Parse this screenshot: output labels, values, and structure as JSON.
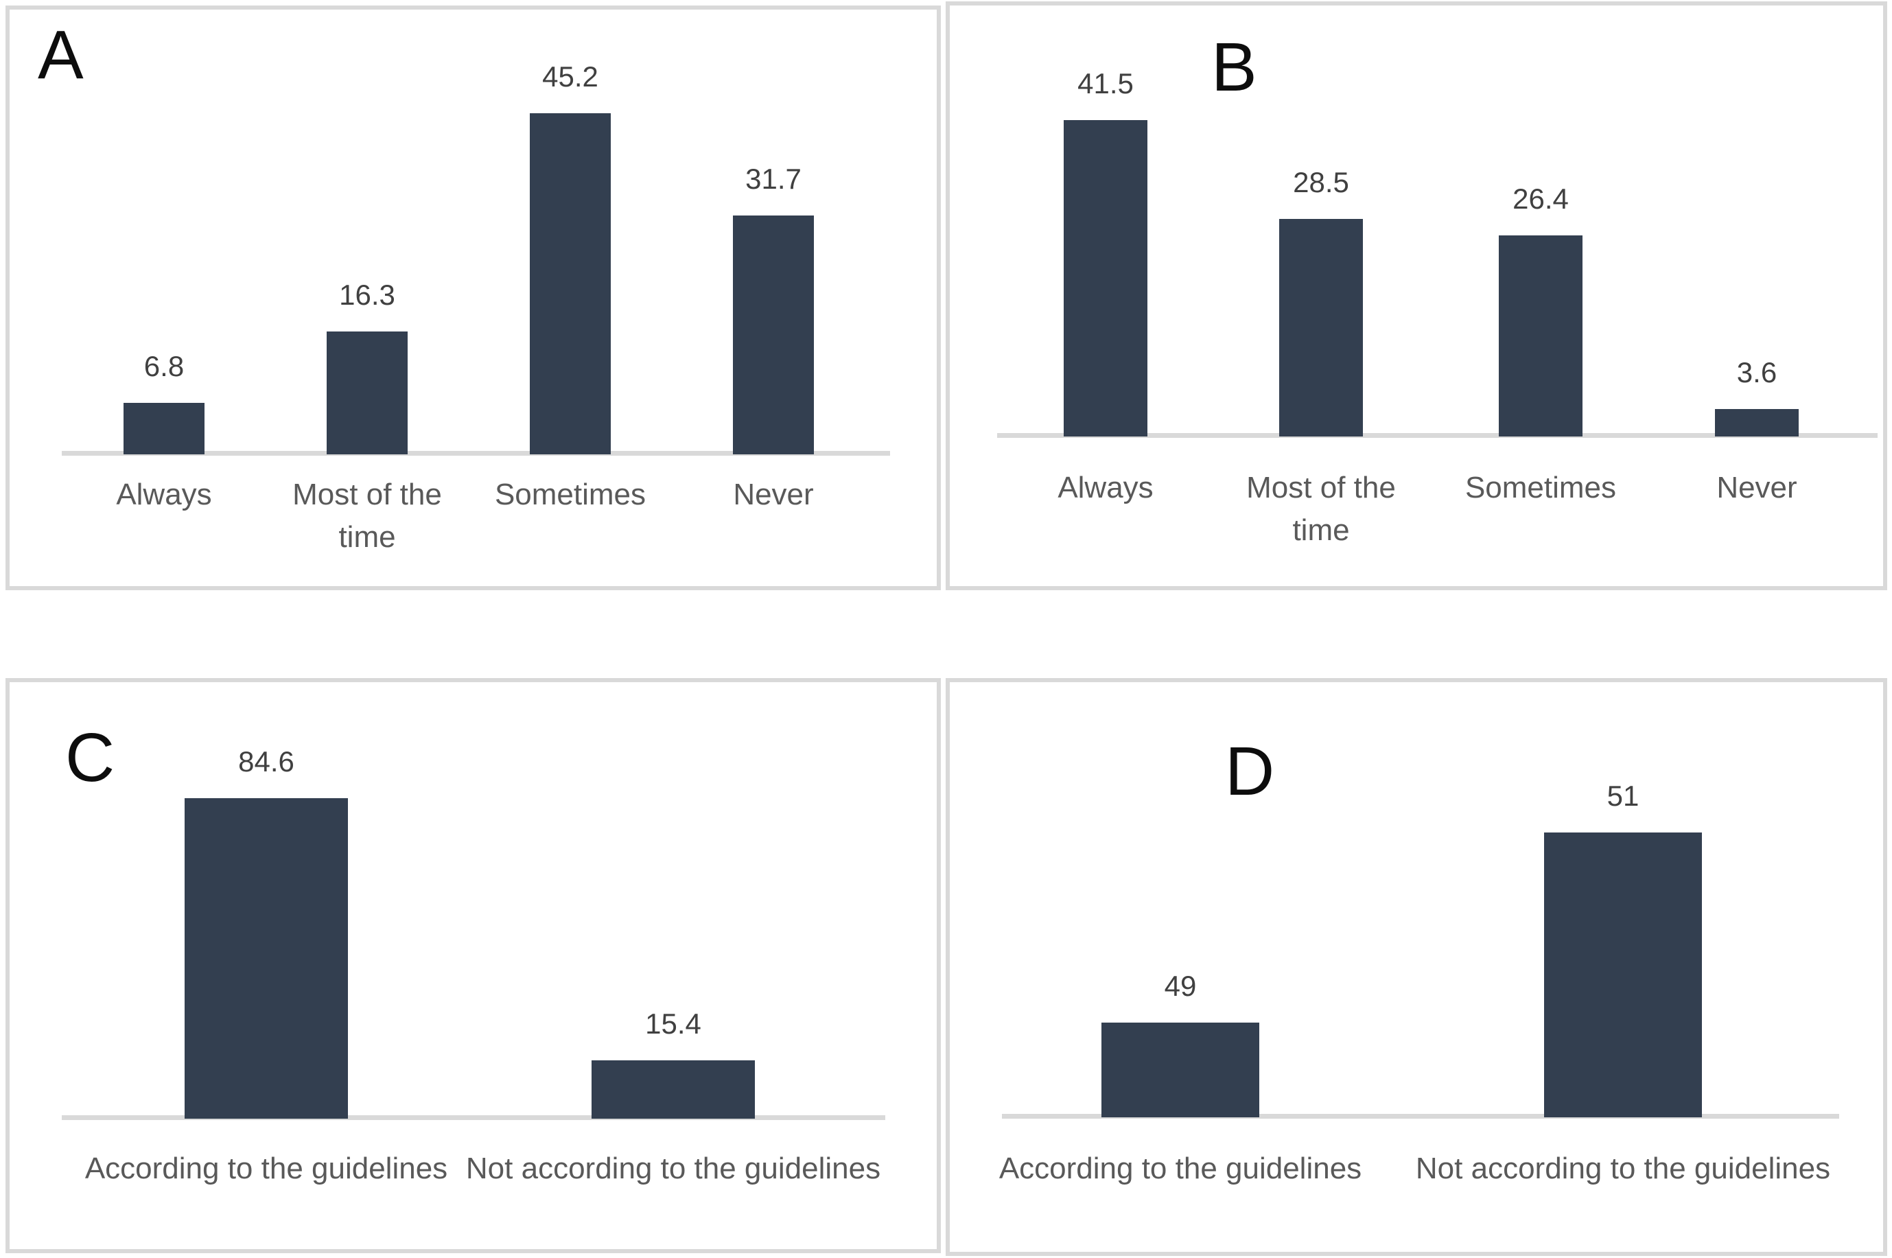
{
  "figure": {
    "description": "Four-panel bar chart figure",
    "panels": [
      "A",
      "B",
      "C",
      "D"
    ]
  },
  "colors": {
    "bar": "#333F50",
    "axis_line": "#D9D9D9",
    "panel_border": "#D9D9D9",
    "value_label": "#404040",
    "category_label": "#595959",
    "panel_letter": "#0D0D0D",
    "background": "#FFFFFF"
  },
  "chart_data": [
    {
      "id": "A",
      "panel_letter": "A",
      "type": "bar",
      "title": "",
      "xlabel": "",
      "ylabel": "",
      "grid": false,
      "legend": null,
      "categories": [
        "Always",
        "Most of the time",
        "Sometimes",
        "Never"
      ],
      "values": [
        6.8,
        16.3,
        45.2,
        31.7
      ],
      "data_labels": [
        "6.8",
        "16.3",
        "45.2",
        "31.7"
      ],
      "ylim": [
        0,
        47.3
      ]
    },
    {
      "id": "B",
      "panel_letter": "B",
      "type": "bar",
      "title": "",
      "xlabel": "",
      "ylabel": "",
      "grid": false,
      "legend": null,
      "categories": [
        "Always",
        "Most of the time",
        "Sometimes",
        "Never"
      ],
      "values": [
        41.5,
        28.5,
        26.4,
        3.6
      ],
      "data_labels": [
        "41.5",
        "28.5",
        "26.4",
        "3.6"
      ],
      "ylim": [
        0,
        46.8
      ]
    },
    {
      "id": "C",
      "panel_letter": "C",
      "type": "bar",
      "title": "",
      "xlabel": "",
      "ylabel": "",
      "grid": false,
      "legend": null,
      "categories": [
        "According to the guidelines",
        "Not according to the guidelines"
      ],
      "values": [
        84.6,
        15.4
      ],
      "data_labels": [
        "84.6",
        "15.4"
      ],
      "ylim": [
        0,
        94.2
      ]
    },
    {
      "id": "D",
      "panel_letter": "D",
      "type": "bar",
      "title": "",
      "xlabel": "",
      "ylabel": "",
      "grid": false,
      "legend": null,
      "categories": [
        "According to the guidelines",
        "Not according to the guidelines"
      ],
      "values": [
        49,
        51
      ],
      "data_labels": [
        "49",
        "51"
      ],
      "ylim": [
        48,
        51.76
      ]
    }
  ]
}
